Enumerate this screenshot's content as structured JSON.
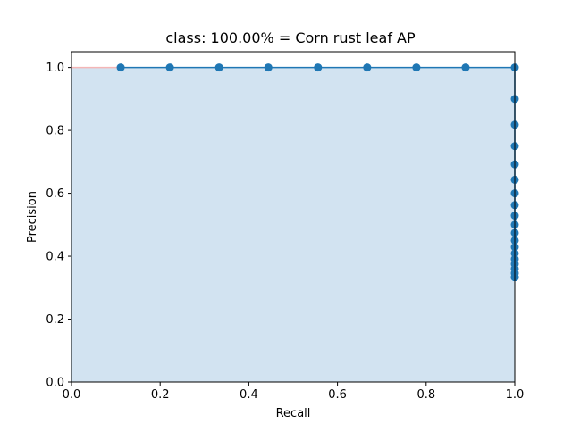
{
  "chart_data": {
    "type": "line",
    "title": "class: 100.00% = Corn rust leaf AP",
    "xlabel": "Recall",
    "ylabel": "Precision",
    "xlim": [
      0.0,
      1.0
    ],
    "ylim": [
      0.0,
      1.05
    ],
    "xticks": [
      0.0,
      0.2,
      0.4,
      0.6,
      0.8,
      1.0
    ],
    "yticks": [
      0.0,
      0.2,
      0.4,
      0.6,
      0.8,
      1.0
    ],
    "xtick_labels": [
      "0.0",
      "0.2",
      "0.4",
      "0.6",
      "0.8",
      "1.0"
    ],
    "ytick_labels": [
      "0.0",
      "0.2",
      "0.4",
      "0.6",
      "0.8",
      "1.0"
    ],
    "grid": false,
    "series": [
      {
        "color": "#1f77b4",
        "marker": "circle",
        "fill_under": true,
        "fill_color": "#a6c8e4",
        "x": [
          0.111,
          0.222,
          0.333,
          0.444,
          0.556,
          0.667,
          0.778,
          0.889,
          1.0,
          1.0,
          1.0,
          1.0,
          1.0,
          1.0,
          1.0,
          1.0,
          1.0,
          1.0,
          1.0,
          1.0,
          1.0,
          1.0,
          1.0,
          1.0,
          1.0,
          1.0,
          1.0,
          1.0
        ],
        "y": [
          1.0,
          1.0,
          1.0,
          1.0,
          1.0,
          1.0,
          1.0,
          1.0,
          1.0,
          0.9,
          0.818,
          0.75,
          0.692,
          0.643,
          0.6,
          0.5625,
          0.529,
          0.5,
          0.474,
          0.45,
          0.429,
          0.409,
          0.391,
          0.375,
          0.36,
          0.346,
          0.333,
          0.333
        ]
      }
    ],
    "reference_line": {
      "color": "#f4b6b6",
      "x": [
        0.0,
        0.111
      ],
      "y": [
        1.0,
        1.0
      ]
    }
  }
}
